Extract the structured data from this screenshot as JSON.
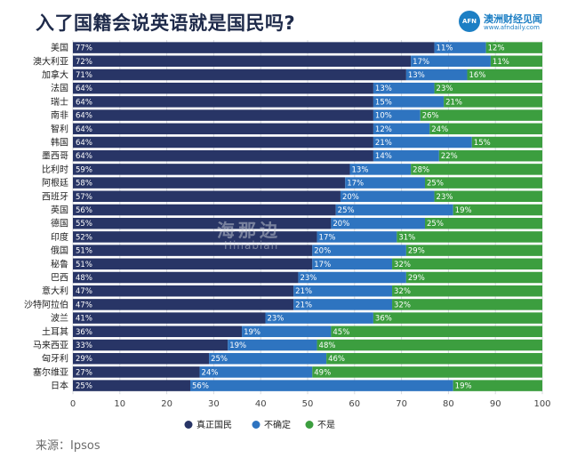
{
  "page": {
    "title": "入了国籍会说英语就是国民吗?",
    "source": "来源：Ipsos",
    "brand": {
      "logo_text": "AFN",
      "name": "澳洲财经见闻",
      "url": "www.afndaily.com"
    },
    "watermark": {
      "cn": "海那边",
      "en": "Hinabian"
    }
  },
  "chart_data": {
    "type": "bar",
    "orientation": "horizontal",
    "stacked": true,
    "title": "入了国籍会说英语就是国民吗?",
    "xlabel": "",
    "ylabel": "",
    "xlim": [
      0,
      100
    ],
    "xticks": [
      0,
      10,
      20,
      30,
      40,
      50,
      60,
      70,
      80,
      90,
      100
    ],
    "grid": true,
    "legend_position": "bottom",
    "categories": [
      "美国",
      "澳大利亚",
      "加拿大",
      "法国",
      "瑞士",
      "南非",
      "智利",
      "韩国",
      "墨西哥",
      "比利时",
      "阿根廷",
      "西班牙",
      "英国",
      "德国",
      "印度",
      "俄国",
      "秘鲁",
      "巴西",
      "意大利",
      "沙特阿拉伯",
      "波兰",
      "土耳其",
      "马来西亚",
      "匈牙利",
      "塞尔维亚",
      "日本"
    ],
    "series": [
      {
        "name": "真正国民",
        "color": "#283566",
        "values": [
          77,
          72,
          71,
          64,
          64,
          64,
          64,
          64,
          64,
          59,
          58,
          57,
          56,
          55,
          52,
          51,
          51,
          48,
          47,
          47,
          41,
          36,
          33,
          29,
          27,
          25
        ]
      },
      {
        "name": "不确定",
        "color": "#2e74c0",
        "values": [
          11,
          17,
          13,
          13,
          15,
          10,
          12,
          21,
          14,
          13,
          17,
          20,
          25,
          20,
          17,
          20,
          17,
          23,
          21,
          21,
          23,
          19,
          19,
          25,
          24,
          56
        ]
      },
      {
        "name": "不是",
        "color": "#3c9e3f",
        "values": [
          12,
          11,
          16,
          23,
          21,
          26,
          24,
          15,
          22,
          28,
          25,
          23,
          19,
          25,
          31,
          29,
          32,
          29,
          32,
          32,
          36,
          45,
          48,
          46,
          49,
          19
        ]
      }
    ]
  }
}
